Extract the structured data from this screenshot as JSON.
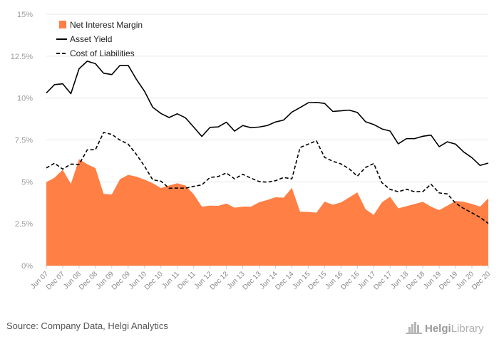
{
  "chart_data": {
    "type": "area",
    "x": [
      "Jun 07",
      "Sep 07",
      "Dec 07",
      "Mar 08",
      "Jun 08",
      "Sep 08",
      "Dec 08",
      "Mar 09",
      "Jun 09",
      "Sep 09",
      "Dec 09",
      "Mar 10",
      "Jun 10",
      "Sep 10",
      "Dec 10",
      "Mar 11",
      "Jun 11",
      "Sep 11",
      "Dec 11",
      "Mar 12",
      "Jun 12",
      "Sep 12",
      "Dec 12",
      "Mar 13",
      "Jun 13",
      "Sep 13",
      "Dec 13",
      "Mar 14",
      "Jun 14",
      "Sep 14",
      "Dec 14",
      "Mar 15",
      "Jun 15",
      "Sep 15",
      "Dec 15",
      "Mar 16",
      "Jun 16",
      "Sep 16",
      "Dec 16",
      "Mar 17",
      "Jun 17",
      "Sep 17",
      "Dec 17",
      "Mar 18",
      "Jun 18",
      "Sep 18",
      "Dec 18",
      "Mar 19",
      "Jun 19",
      "Sep 19",
      "Dec 19",
      "Mar 20",
      "Jun 20",
      "Sep 20",
      "Dec 20"
    ],
    "x_tick_labels": [
      "Jun 07",
      "Dec 07",
      "Jun 08",
      "Dec 08",
      "Jun 09",
      "Dec 09",
      "Jun 10",
      "Dec 10",
      "Jun 11",
      "Dec 11",
      "Jun 12",
      "Dec 12",
      "Jun 13",
      "Dec 13",
      "Jun 14",
      "Dec 14",
      "Jun 15",
      "Dec 15",
      "Jun 16",
      "Dec 16",
      "Jun 17",
      "Dec 17",
      "Jun 18",
      "Dec 18",
      "Jun 19",
      "Dec 19",
      "Jun 20",
      "Dec 20"
    ],
    "y_tick_labels": [
      "0%",
      "2.5%",
      "5%",
      "7.5%",
      "10%",
      "12.5%",
      "15%"
    ],
    "y_ticks": [
      0,
      2.5,
      5,
      7.5,
      10,
      12.5,
      15
    ],
    "ylim": [
      0,
      15
    ],
    "grid": true,
    "legend_position": "top-left",
    "series": [
      {
        "name": "Net Interest Margin",
        "style": "area",
        "color": "#ff7f45",
        "values": [
          4.98,
          5.25,
          5.72,
          4.88,
          6.35,
          6.05,
          5.82,
          4.28,
          4.25,
          5.16,
          5.42,
          5.31,
          5.13,
          4.92,
          4.63,
          4.78,
          4.92,
          4.78,
          4.26,
          3.52,
          3.58,
          3.57,
          3.71,
          3.46,
          3.52,
          3.52,
          3.78,
          3.92,
          4.08,
          4.06,
          4.64,
          3.22,
          3.21,
          3.16,
          3.82,
          3.64,
          3.77,
          4.07,
          4.37,
          3.37,
          3.03,
          3.78,
          4.11,
          3.42,
          3.55,
          3.68,
          3.81,
          3.52,
          3.31,
          3.58,
          3.86,
          3.81,
          3.68,
          3.52,
          4.02
        ]
      },
      {
        "name": "Asset Yield",
        "style": "solid",
        "color": "#000000",
        "values": [
          10.3,
          10.8,
          10.85,
          10.26,
          11.75,
          12.2,
          12.05,
          11.48,
          11.4,
          11.95,
          11.95,
          11.12,
          10.4,
          9.45,
          9.08,
          8.84,
          9.06,
          8.82,
          8.27,
          7.71,
          8.25,
          8.28,
          8.56,
          8.03,
          8.36,
          8.23,
          8.27,
          8.36,
          8.57,
          8.69,
          9.16,
          9.43,
          9.72,
          9.74,
          9.68,
          9.2,
          9.24,
          9.28,
          9.14,
          8.59,
          8.42,
          8.16,
          8.03,
          7.27,
          7.58,
          7.58,
          7.72,
          7.79,
          7.1,
          7.39,
          7.25,
          6.78,
          6.44,
          5.98,
          6.12
        ]
      },
      {
        "name": "Cost of Liabilities",
        "style": "dashed",
        "color": "#000000",
        "values": [
          5.83,
          6.11,
          5.76,
          6.06,
          6.04,
          6.91,
          6.92,
          7.95,
          7.83,
          7.49,
          7.25,
          6.64,
          5.93,
          5.12,
          5.04,
          4.62,
          4.63,
          4.62,
          4.73,
          4.82,
          5.26,
          5.32,
          5.53,
          5.18,
          5.45,
          5.22,
          5.02,
          4.98,
          5.07,
          5.26,
          5.18,
          7.05,
          7.25,
          7.45,
          6.46,
          6.23,
          6.07,
          5.78,
          5.34,
          5.86,
          6.09,
          4.95,
          4.55,
          4.41,
          4.56,
          4.41,
          4.42,
          4.86,
          4.34,
          4.28,
          3.73,
          3.41,
          3.15,
          2.88,
          2.52
        ]
      }
    ]
  },
  "source": "Source: Company Data, Helgi Analytics",
  "brand": {
    "name": "HelgiLibrary",
    "part1": "Helgi",
    "part2": "Library",
    "icon": "helgi-library-logo"
  }
}
